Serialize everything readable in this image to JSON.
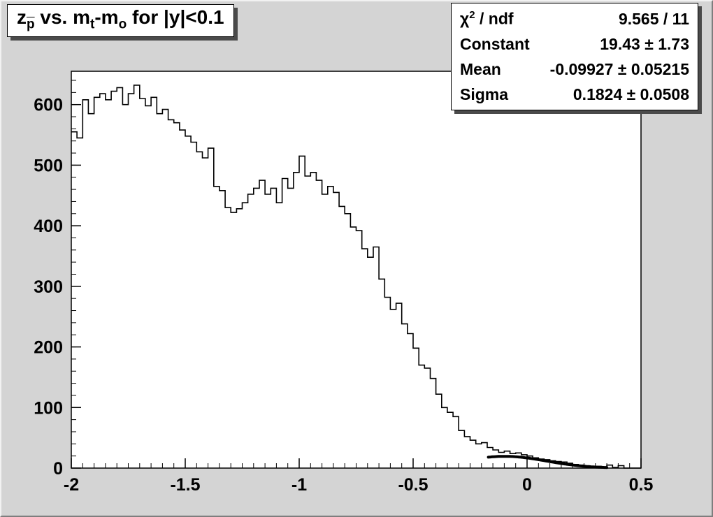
{
  "title": {
    "t1": "z",
    "sub1": "p",
    "t2": " vs. m",
    "sub2": "t",
    "t3": "-m",
    "sub3": "o",
    "t4": " for |y|<0.1"
  },
  "stats": {
    "chi_label": {
      "chi": "χ",
      "sup": "2",
      "rest": " / ndf"
    },
    "rows": [
      {
        "label": "",
        "value": "9.565 / 11"
      },
      {
        "label": "Constant",
        "value": "19.43 ± 1.73"
      },
      {
        "label": "Mean",
        "value": "-0.09927 ± 0.05215"
      },
      {
        "label": "Sigma",
        "value": "0.1824 ± 0.0508"
      }
    ]
  },
  "chart_data": {
    "type": "histogram-step",
    "title": "z_pbar vs. m_t-m_o for |y|<0.1",
    "xlim": [
      -2,
      0.5
    ],
    "ylim": [
      0,
      655
    ],
    "x_start": -2,
    "bin_width": 0.025,
    "values": [
      555,
      545,
      608,
      585,
      612,
      618,
      608,
      622,
      628,
      600,
      618,
      632,
      610,
      598,
      612,
      585,
      592,
      575,
      570,
      558,
      548,
      538,
      522,
      512,
      528,
      465,
      458,
      430,
      422,
      428,
      438,
      452,
      462,
      475,
      452,
      462,
      438,
      478,
      462,
      488,
      515,
      482,
      488,
      475,
      452,
      465,
      455,
      432,
      420,
      398,
      392,
      362,
      348,
      365,
      312,
      282,
      262,
      272,
      238,
      222,
      198,
      170,
      165,
      148,
      122,
      100,
      92,
      85,
      62,
      52,
      46,
      40,
      42,
      34,
      30,
      26,
      28,
      24,
      25,
      22,
      20,
      17,
      15,
      14,
      12,
      11,
      10,
      8,
      6,
      5,
      3,
      2,
      3,
      2,
      5,
      1,
      4,
      0,
      0,
      0
    ],
    "x_ticks": [
      -2,
      -1.5,
      -1,
      -0.5,
      0,
      0.5
    ],
    "x_tick_labels": [
      "-2",
      "-1.5",
      "-1",
      "-0.5",
      "0",
      "0.5"
    ],
    "y_ticks": [
      0,
      100,
      200,
      300,
      400,
      500,
      600
    ],
    "y_tick_labels": [
      "0",
      "100",
      "200",
      "300",
      "400",
      "500",
      "600"
    ],
    "x_minor_step": 0.05,
    "y_minor_step": 20,
    "grid": "off",
    "legend": "none",
    "fit": {
      "type": "gaussian",
      "constant": 19.43,
      "mean": -0.09927,
      "sigma": 0.1824,
      "range": [
        -0.17,
        0.35
      ]
    },
    "colors": {
      "hist_line": "#000000",
      "fit_line": "#000000",
      "frame_bg": "#ffffff",
      "canvas_bg": "#d4d4d4"
    }
  }
}
